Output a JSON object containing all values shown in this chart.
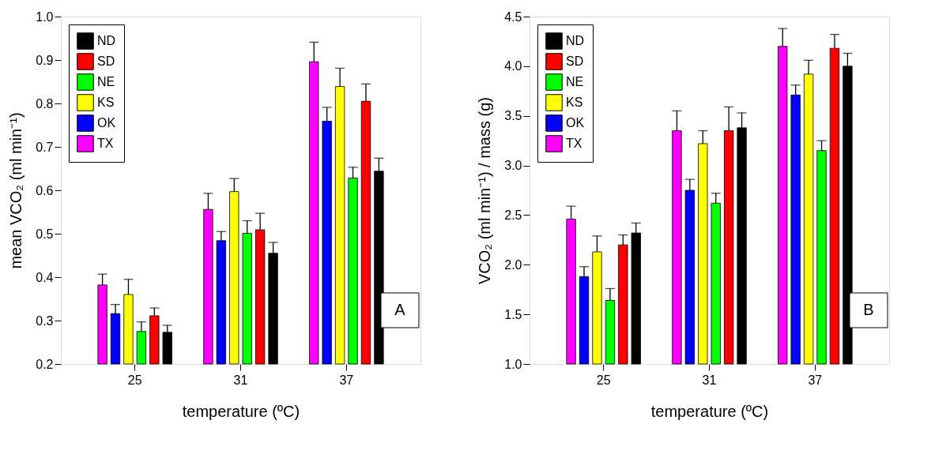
{
  "chart_data": [
    {
      "type": "bar",
      "xlabel": "temperature (ºC)",
      "ylabel": "mean VCO₂ (ml min⁻¹)",
      "categories": [
        "25",
        "31",
        "37"
      ],
      "ylim": [
        0.2,
        1.0
      ],
      "yticks": [
        0.2,
        0.3,
        0.4,
        0.5,
        0.6,
        0.7,
        0.8,
        0.9,
        {
          "value": 1.0,
          "label": "1.0"
        }
      ],
      "grid": false,
      "legend": "top left",
      "annotations": [
        "A"
      ],
      "series": [
        {
          "name": "TX",
          "color": "#ff00ff",
          "values": [
            0.382,
            0.556,
            0.896
          ],
          "errors": [
            [
              0.382,
              0.407
            ],
            [
              0.556,
              0.593
            ],
            [
              0.896,
              0.941
            ]
          ]
        },
        {
          "name": "OK",
          "color": "#0000ff",
          "values": [
            0.316,
            0.484,
            0.759
          ],
          "errors": [
            [
              0.316,
              0.337
            ],
            [
              0.484,
              0.505
            ],
            [
              0.759,
              0.791
            ]
          ]
        },
        {
          "name": "KS",
          "color": "#ffff00",
          "values": [
            0.36,
            0.597,
            0.839
          ],
          "errors": [
            [
              0.36,
              0.395
            ],
            [
              0.597,
              0.627
            ],
            [
              0.839,
              0.881
            ]
          ]
        },
        {
          "name": "NE",
          "color": "#00ff00",
          "values": [
            0.275,
            0.501,
            0.628
          ],
          "errors": [
            [
              0.275,
              0.297
            ],
            [
              0.501,
              0.53
            ],
            [
              0.628,
              0.653
            ]
          ]
        },
        {
          "name": "SD",
          "color": "#ff0000",
          "values": [
            0.311,
            0.509,
            0.805
          ],
          "errors": [
            [
              0.311,
              0.329
            ],
            [
              0.509,
              0.547
            ],
            [
              0.805,
              0.845
            ]
          ]
        },
        {
          "name": "ND",
          "color": "#000000",
          "values": [
            0.273,
            0.455,
            0.644
          ],
          "errors": [
            [
              0.273,
              0.289
            ],
            [
              0.455,
              0.48
            ],
            [
              0.644,
              0.674
            ]
          ]
        }
      ]
    },
    {
      "type": "bar",
      "xlabel": "temperature (ºC)",
      "ylabel": "VCO₂ (ml min⁻¹) / mass (g)",
      "categories": [
        "25",
        "31",
        "37"
      ],
      "ylim": [
        1.0,
        4.5
      ],
      "yticks": [
        {
          "value": 1.0,
          "label": "1.0"
        },
        1.5,
        {
          "value": 2.0,
          "label": "2.0"
        },
        2.5,
        {
          "value": 3.0,
          "label": "3.0"
        },
        3.5,
        {
          "value": 4.0,
          "label": "4.0"
        },
        4.5
      ],
      "grid": false,
      "legend": "top left",
      "annotations": [
        "B"
      ],
      "series": [
        {
          "name": "TX",
          "color": "#ff00ff",
          "values": [
            2.46,
            3.35,
            4.2
          ],
          "errors": [
            [
              2.46,
              2.59
            ],
            [
              3.35,
              3.55
            ],
            [
              4.2,
              4.38
            ]
          ]
        },
        {
          "name": "OK",
          "color": "#0000ff",
          "values": [
            1.88,
            2.75,
            3.71
          ],
          "errors": [
            [
              1.88,
              1.98
            ],
            [
              2.75,
              2.86
            ],
            [
              3.71,
              3.81
            ]
          ]
        },
        {
          "name": "KS",
          "color": "#ffff00",
          "values": [
            2.13,
            3.22,
            3.92
          ],
          "errors": [
            [
              2.13,
              2.29
            ],
            [
              3.22,
              3.35
            ],
            [
              3.92,
              4.06
            ]
          ]
        },
        {
          "name": "NE",
          "color": "#00ff00",
          "values": [
            1.64,
            2.62,
            3.15
          ],
          "errors": [
            [
              1.64,
              1.76
            ],
            [
              2.62,
              2.72
            ],
            [
              3.15,
              3.25
            ]
          ]
        },
        {
          "name": "SD",
          "color": "#ff0000",
          "values": [
            2.2,
            3.35,
            4.18
          ],
          "errors": [
            [
              2.2,
              2.3
            ],
            [
              3.35,
              3.59
            ],
            [
              4.18,
              4.32
            ]
          ]
        },
        {
          "name": "ND",
          "color": "#000000",
          "values": [
            2.32,
            3.38,
            4.0
          ],
          "errors": [
            [
              2.32,
              2.42
            ],
            [
              3.38,
              3.53
            ],
            [
              4.0,
              4.13
            ]
          ]
        }
      ]
    }
  ]
}
